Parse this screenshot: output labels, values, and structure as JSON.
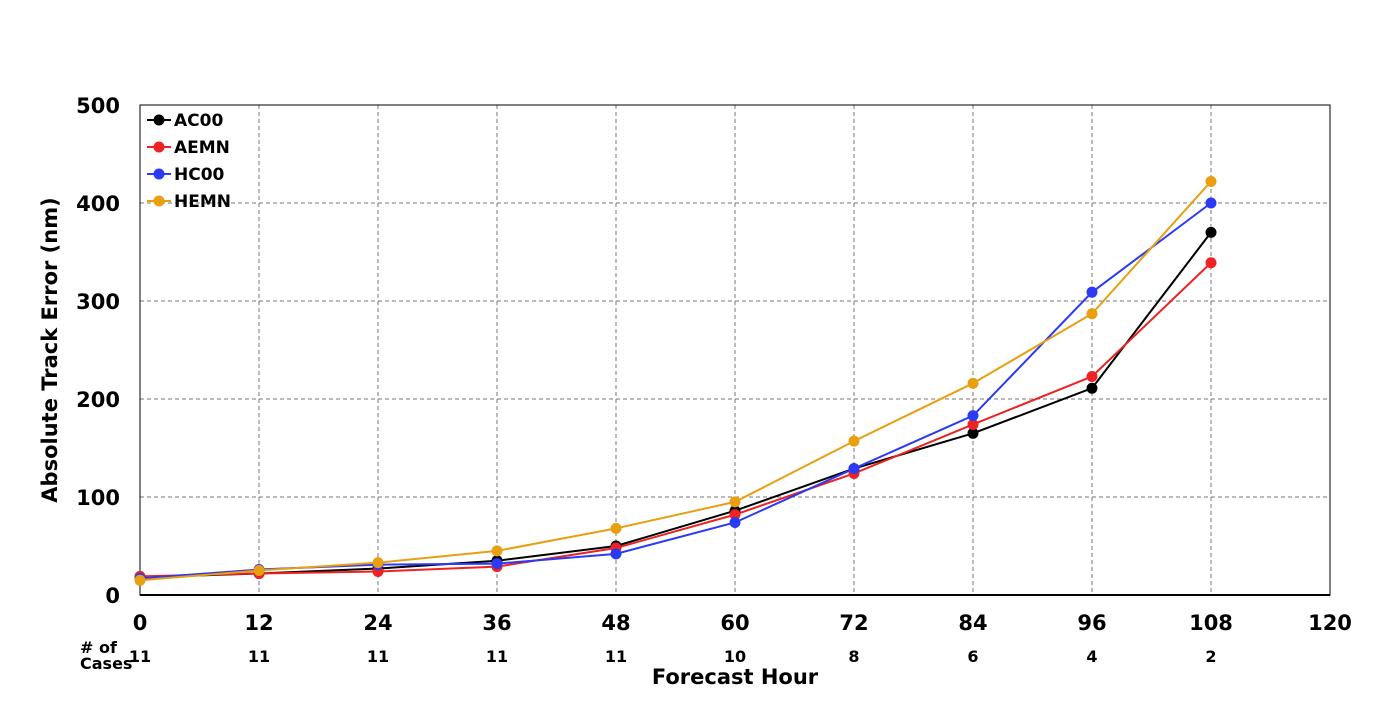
{
  "chart_data": {
    "type": "line",
    "title": "",
    "xlabel": "Forecast Hour",
    "ylabel": "Absolute Track Error (nm)",
    "xlim": [
      0,
      120
    ],
    "ylim": [
      0,
      500
    ],
    "x_ticks": [
      0,
      12,
      24,
      36,
      48,
      60,
      72,
      84,
      96,
      108,
      120
    ],
    "y_ticks": [
      0,
      100,
      200,
      300,
      400,
      500
    ],
    "grid": true,
    "legend_position": "top-left",
    "x": [
      0,
      12,
      24,
      36,
      48,
      60,
      72,
      84,
      96,
      108
    ],
    "series": [
      {
        "name": "AC00",
        "color": "#000000",
        "values": [
          18,
          22,
          27,
          35,
          50,
          86,
          129,
          165,
          211,
          370
        ]
      },
      {
        "name": "AEMN",
        "color": "#ee2222",
        "values": [
          19,
          22,
          24,
          29,
          48,
          82,
          124,
          174,
          223,
          339
        ]
      },
      {
        "name": "HC00",
        "color": "#2b3bf5",
        "values": [
          17,
          26,
          31,
          32,
          42,
          74,
          129,
          183,
          309,
          400
        ]
      },
      {
        "name": "HEMN",
        "color": "#e89f10",
        "values": [
          15,
          25,
          33,
          45,
          68,
          95,
          157,
          216,
          287,
          422
        ]
      }
    ],
    "cases": {
      "label_line1": "# of",
      "label_line2": "Cases",
      "values": [
        11,
        11,
        11,
        11,
        11,
        10,
        8,
        6,
        4,
        2
      ]
    }
  }
}
